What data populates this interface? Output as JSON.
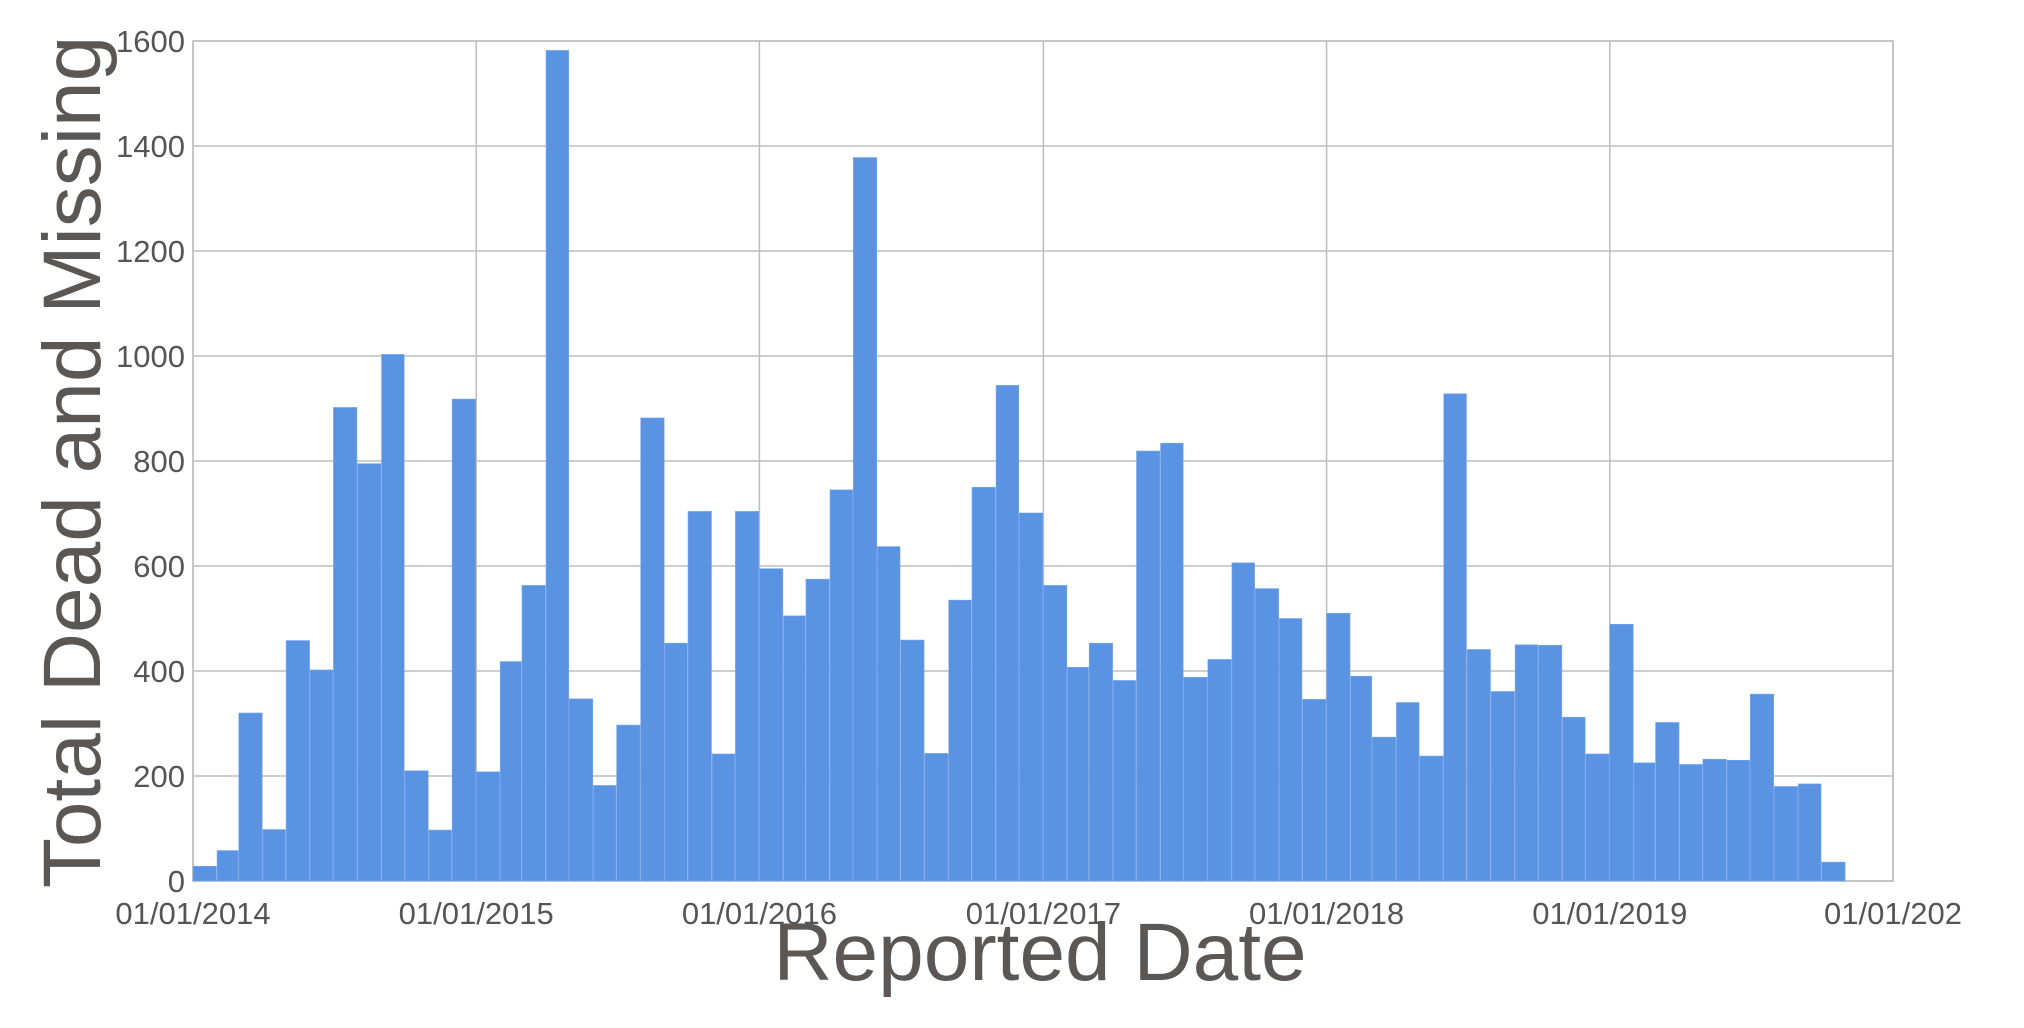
{
  "chart_data": {
    "type": "bar",
    "xlabel": "Reported Date",
    "ylabel": "Total Dead and Missing",
    "x_tick_labels": [
      "01/01/2014",
      "01/01/2015",
      "01/01/2016",
      "01/01/2017",
      "01/01/2018",
      "01/01/2019",
      "01/01/202"
    ],
    "y_tick_labels": [
      "0",
      "200",
      "400",
      "600",
      "800",
      "1000",
      "1200",
      "1400",
      "1600"
    ],
    "ylim": [
      0,
      1600
    ],
    "grid": true,
    "legend": "none",
    "bar_color": "#5b93e3",
    "bin_width_months": 1,
    "xlim": [
      "2014-01-01",
      "2020-01-01"
    ],
    "x": [
      "2014-01",
      "2014-02",
      "2014-03",
      "2014-04",
      "2014-05",
      "2014-06",
      "2014-07",
      "2014-08",
      "2014-09",
      "2014-10",
      "2014-11",
      "2014-12",
      "2015-01",
      "2015-02",
      "2015-03",
      "2015-04",
      "2015-05",
      "2015-06",
      "2015-07",
      "2015-08",
      "2015-09",
      "2015-10",
      "2015-11",
      "2015-12",
      "2016-01",
      "2016-02",
      "2016-03",
      "2016-04",
      "2016-05",
      "2016-06",
      "2016-07",
      "2016-08",
      "2016-09",
      "2016-10",
      "2016-11",
      "2016-12",
      "2017-01",
      "2017-02",
      "2017-03",
      "2017-04",
      "2017-05",
      "2017-06",
      "2017-07",
      "2017-08",
      "2017-09",
      "2017-10",
      "2017-11",
      "2017-12",
      "2018-01",
      "2018-02",
      "2018-03",
      "2018-04",
      "2018-05",
      "2018-06",
      "2018-07",
      "2018-08",
      "2018-09",
      "2018-10",
      "2018-11",
      "2018-12",
      "2019-01",
      "2019-02",
      "2019-03",
      "2019-04",
      "2019-05",
      "2019-06",
      "2019-07",
      "2019-08",
      "2019-09",
      "2019-10"
    ],
    "values": [
      28,
      58,
      320,
      98,
      458,
      402,
      902,
      795,
      1003,
      210,
      97,
      918,
      208,
      418,
      563,
      1582,
      347,
      182,
      297,
      882,
      453,
      704,
      242,
      704,
      595,
      505,
      575,
      745,
      1378,
      637,
      459,
      243,
      535,
      750,
      944,
      701,
      563,
      407,
      453,
      382,
      819,
      834,
      388,
      422,
      606,
      557,
      500,
      346,
      510,
      390,
      274,
      340,
      238,
      928,
      441,
      361,
      450,
      449,
      312,
      242,
      489,
      225,
      302,
      222,
      232,
      230,
      356,
      180,
      185,
      36
    ]
  }
}
